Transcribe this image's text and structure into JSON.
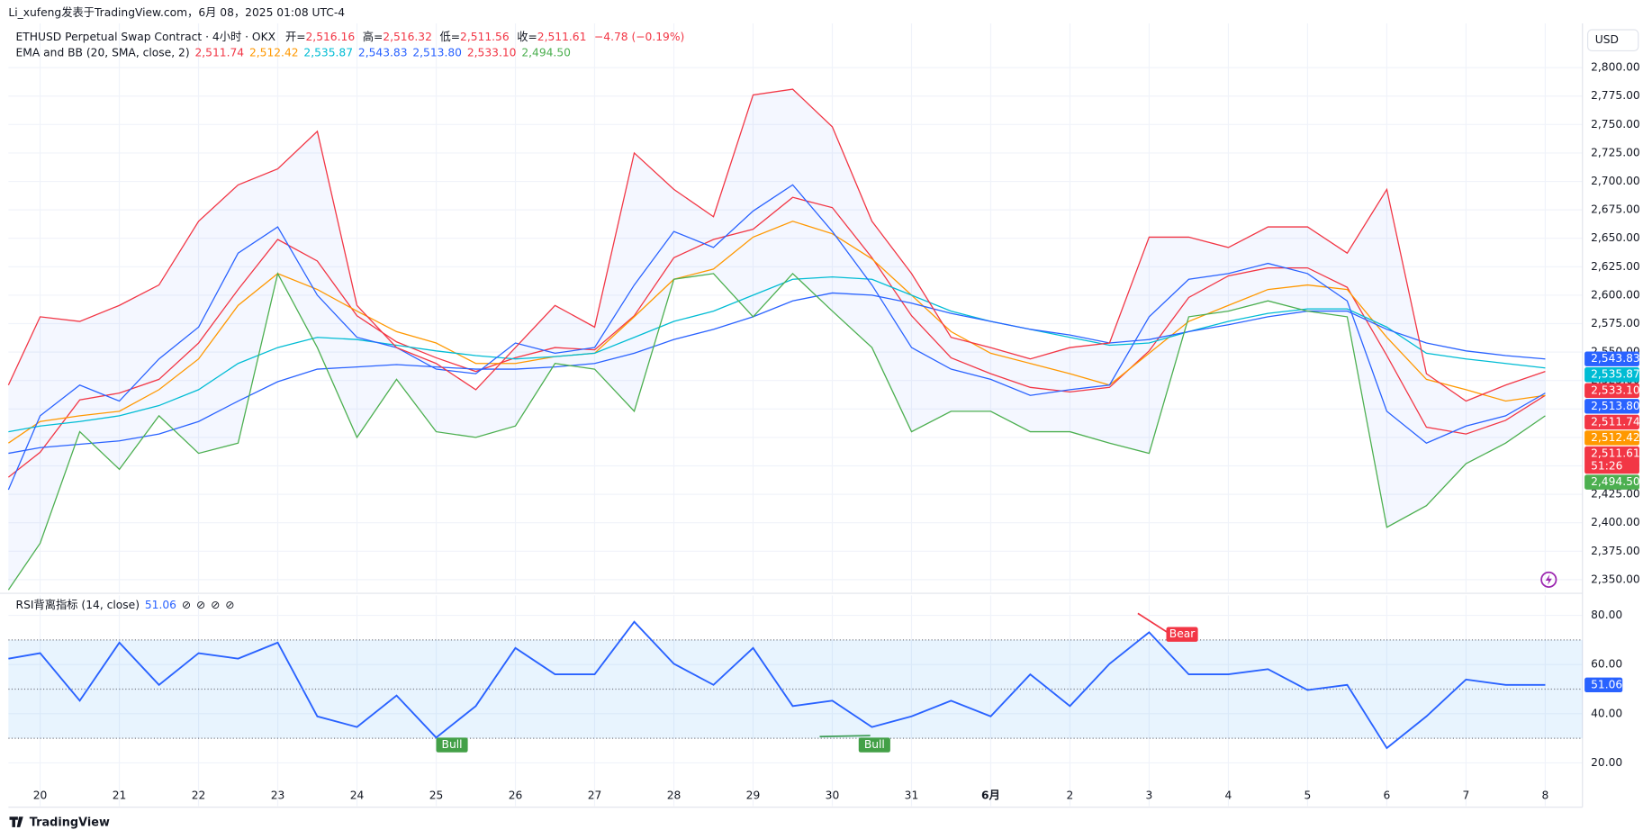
{
  "header": {
    "author_line": "Li_xufeng发表于TradingView.com，6月 08，2025 01:08 UTC-4",
    "symbol": "ETHUSD Perpetual Swap Contract · 4小时 · OKX",
    "ohlc": [
      {
        "key": "开=",
        "value": "2,516.16"
      },
      {
        "key": "高=",
        "value": "2,516.32"
      },
      {
        "key": "低=",
        "value": "2,511.56"
      },
      {
        "key": "收=",
        "value": "2,511.61"
      }
    ],
    "change": "−4.78 (−0.19%)",
    "currency": "USD",
    "logo": "TradingView"
  },
  "chart_data": [
    {
      "type": "line",
      "title": "EMA and BB (20, SMA, close, 2)",
      "x": [
        -0.4,
        0,
        0.5,
        1,
        1.5,
        2,
        2.5,
        3,
        3.5,
        4,
        4.5,
        5,
        5.5,
        6,
        6.5,
        7,
        7.5,
        8,
        8.5,
        9,
        9.5,
        10,
        10.5,
        11,
        11.5,
        12,
        12.5,
        13,
        13.5,
        14,
        14.5,
        15,
        15.5,
        16,
        16.5,
        17,
        17.5,
        18,
        18.5,
        19
      ],
      "xlim": [
        -0.4,
        19.47
      ],
      "xticks": [
        {
          "value": 0,
          "label": "20"
        },
        {
          "value": 1,
          "label": "21"
        },
        {
          "value": 2,
          "label": "22"
        },
        {
          "value": 3,
          "label": "23"
        },
        {
          "value": 4,
          "label": "24"
        },
        {
          "value": 5,
          "label": "25"
        },
        {
          "value": 6,
          "label": "26"
        },
        {
          "value": 7,
          "label": "27"
        },
        {
          "value": 8,
          "label": "28"
        },
        {
          "value": 9,
          "label": "29"
        },
        {
          "value": 10,
          "label": "30"
        },
        {
          "value": 11,
          "label": "31"
        },
        {
          "value": 12,
          "label": "6月"
        },
        {
          "value": 13,
          "label": "2"
        },
        {
          "value": 14,
          "label": "3"
        },
        {
          "value": 15,
          "label": "4"
        },
        {
          "value": 16,
          "label": "5"
        },
        {
          "value": 17,
          "label": "6"
        },
        {
          "value": 18,
          "label": "7"
        },
        {
          "value": 19,
          "label": "8"
        }
      ],
      "ylim": [
        2338.9,
        2838.9
      ],
      "yticks": [
        {
          "value": 2350,
          "label": "2,350.00"
        },
        {
          "value": 2375,
          "label": "2,375.00"
        },
        {
          "value": 2400,
          "label": "2,400.00"
        },
        {
          "value": 2425,
          "label": "2,425.00"
        },
        {
          "value": 2450,
          "label": "2,450.00"
        },
        {
          "value": 2475,
          "label": "2,475.00"
        },
        {
          "value": 2500,
          "label": "2,500.00"
        },
        {
          "value": 2525,
          "label": "2,525.00"
        },
        {
          "value": 2550,
          "label": "2,550.00"
        },
        {
          "value": 2575,
          "label": "2,575.00"
        },
        {
          "value": 2600,
          "label": "2,600.00"
        },
        {
          "value": 2625,
          "label": "2,625.00"
        },
        {
          "value": 2650,
          "label": "2,650.00"
        },
        {
          "value": 2675,
          "label": "2,675.00"
        },
        {
          "value": 2700,
          "label": "2,700.00"
        },
        {
          "value": 2725,
          "label": "2,725.00"
        },
        {
          "value": 2750,
          "label": "2,750.00"
        },
        {
          "value": 2775,
          "label": "2,775.00"
        },
        {
          "value": 2800,
          "label": "2,800.00"
        }
      ],
      "grid": true,
      "last_price": 2511.61,
      "last_price_label": "2,511.61",
      "countdown": "51:26",
      "last_price_color": "#f23645",
      "band_fill": "#2962ff",
      "series": [
        {
          "color": "#f23645",
          "legend_value": "2,511.74",
          "values": [
            2440,
            2462,
            2508,
            2514,
            2526,
            2558,
            2605,
            2649,
            2630,
            2582,
            2559,
            2545,
            2533,
            2545,
            2554,
            2552,
            2582,
            2633,
            2649,
            2658,
            2686,
            2677,
            2633,
            2582,
            2545,
            2531,
            2519,
            2515,
            2519,
            2551,
            2598,
            2617,
            2624,
            2624,
            2607,
            2547,
            2484,
            2478,
            2490,
            2512
          ]
        },
        {
          "color": "#ff9800",
          "legend_value": "2,512.42",
          "values": [
            2470,
            2489,
            2494,
            2498,
            2517,
            2544,
            2591,
            2619,
            2605,
            2586,
            2568,
            2558,
            2540,
            2540,
            2546,
            2549,
            2581,
            2614,
            2623,
            2651,
            2665,
            2654,
            2632,
            2600,
            2568,
            2549,
            2540,
            2531,
            2521,
            2549,
            2577,
            2591,
            2605,
            2609,
            2605,
            2563,
            2526,
            2517,
            2507,
            2512
          ]
        },
        {
          "color": "#00bcd4",
          "legend_value": "2,535.87",
          "values": [
            2480,
            2485,
            2489,
            2494,
            2503,
            2517,
            2540,
            2554,
            2563,
            2561,
            2556,
            2551,
            2547,
            2544,
            2546,
            2549,
            2563,
            2577,
            2586,
            2600,
            2614,
            2616,
            2614,
            2600,
            2586,
            2577,
            2570,
            2563,
            2556,
            2558,
            2568,
            2577,
            2584,
            2588,
            2588,
            2572,
            2549,
            2544,
            2540,
            2536
          ]
        },
        {
          "color": "#2962ff",
          "legend_value": "2,543.83",
          "values": [
            2461,
            2466,
            2469,
            2472,
            2478,
            2489,
            2507,
            2524,
            2535,
            2537,
            2539,
            2537,
            2535,
            2535,
            2537,
            2540,
            2549,
            2561,
            2570,
            2581,
            2595,
            2602,
            2600,
            2593,
            2584,
            2577,
            2570,
            2565,
            2558,
            2561,
            2568,
            2574,
            2581,
            2586,
            2586,
            2570,
            2558,
            2551,
            2547,
            2544
          ]
        },
        {
          "color": "#2962ff",
          "legend_value": "2,513.80",
          "values": [
            2429,
            2494,
            2521,
            2507,
            2544,
            2572,
            2637,
            2660,
            2600,
            2563,
            2554,
            2535,
            2531,
            2558,
            2549,
            2554,
            2609,
            2656,
            2642,
            2674,
            2697,
            2656,
            2609,
            2554,
            2535,
            2526,
            2512,
            2517,
            2521,
            2581,
            2614,
            2619,
            2628,
            2619,
            2595,
            2498,
            2470,
            2485,
            2494,
            2514
          ]
        },
        {
          "color": "#f23645",
          "legend_value": "2,533.10",
          "values": [
            2521,
            2581,
            2577,
            2591,
            2609,
            2665,
            2697,
            2711,
            2744,
            2591,
            2554,
            2540,
            2517,
            2554,
            2591,
            2572,
            2725,
            2693,
            2669,
            2776,
            2781,
            2748,
            2665,
            2619,
            2563,
            2554,
            2544,
            2554,
            2558,
            2651,
            2651,
            2642,
            2660,
            2660,
            2637,
            2693,
            2531,
            2507,
            2521,
            2533
          ]
        },
        {
          "color": "#4caf50",
          "legend_value": "2,494.50",
          "values": [
            2341,
            2382,
            2480,
            2447,
            2494,
            2461,
            2470,
            2619,
            2554,
            2475,
            2526,
            2480,
            2475,
            2485,
            2540,
            2535,
            2498,
            2614,
            2619,
            2581,
            2619,
            2586,
            2554,
            2480,
            2498,
            2498,
            2480,
            2480,
            2470,
            2461,
            2581,
            2586,
            2595,
            2586,
            2581,
            2396,
            2415,
            2452,
            2470,
            2494
          ]
        }
      ]
    },
    {
      "type": "line",
      "title": "RSI背离指标 (14, close)",
      "legend_value": "51.06",
      "legend_symbols": [
        "⊘",
        "⊘",
        "⊘",
        "⊘"
      ],
      "ylim": [
        2.4,
        88.1
      ],
      "yticks": [
        {
          "value": 20,
          "label": "20.00"
        },
        {
          "value": 40,
          "label": "40.00"
        },
        {
          "value": 60,
          "label": "60.00"
        },
        {
          "value": 80,
          "label": "80.00"
        }
      ],
      "band": [
        30,
        70
      ],
      "midline": 50,
      "series": [
        {
          "color": "#2962ff",
          "values": [
            62.4,
            64.6,
            45.3,
            68.9,
            51.7,
            64.6,
            62.4,
            68.9,
            38.9,
            34.6,
            47.4,
            30.3,
            43.1,
            66.7,
            56.0,
            56.0,
            77.4,
            60.3,
            51.7,
            66.7,
            43.1,
            45.3,
            34.6,
            38.9,
            45.3,
            38.9,
            56.0,
            43.1,
            60.3,
            73.1,
            56.0,
            56.0,
            58.1,
            49.6,
            51.7,
            26.0,
            38.9,
            53.9,
            51.7,
            51.7
          ]
        }
      ],
      "annotations": [
        {
          "text": "Bull",
          "color": "#43a047"
        },
        {
          "text": "Bull",
          "color": "#43a047"
        },
        {
          "text": "Bear",
          "color": "#f23645"
        }
      ]
    }
  ]
}
